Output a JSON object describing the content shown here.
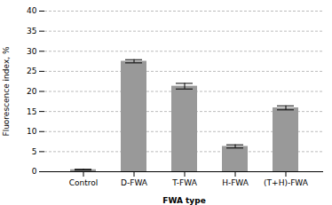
{
  "chart_data": {
    "type": "bar",
    "categories": [
      "Control",
      "D-FWA",
      "T-FWA",
      "H-FWA",
      "(T+H)-FWA"
    ],
    "values": [
      0.5,
      27.5,
      21.3,
      6.3,
      15.9
    ],
    "errors": [
      0.1,
      0.4,
      0.7,
      0.4,
      0.5
    ],
    "color": "#999999",
    "xlabel": "FWA type",
    "ylabel": "Fluorescence index, %",
    "ylim": [
      0,
      40
    ],
    "yticks": [
      0,
      5,
      10,
      15,
      20,
      25,
      30,
      35,
      40
    ],
    "grid": true
  }
}
